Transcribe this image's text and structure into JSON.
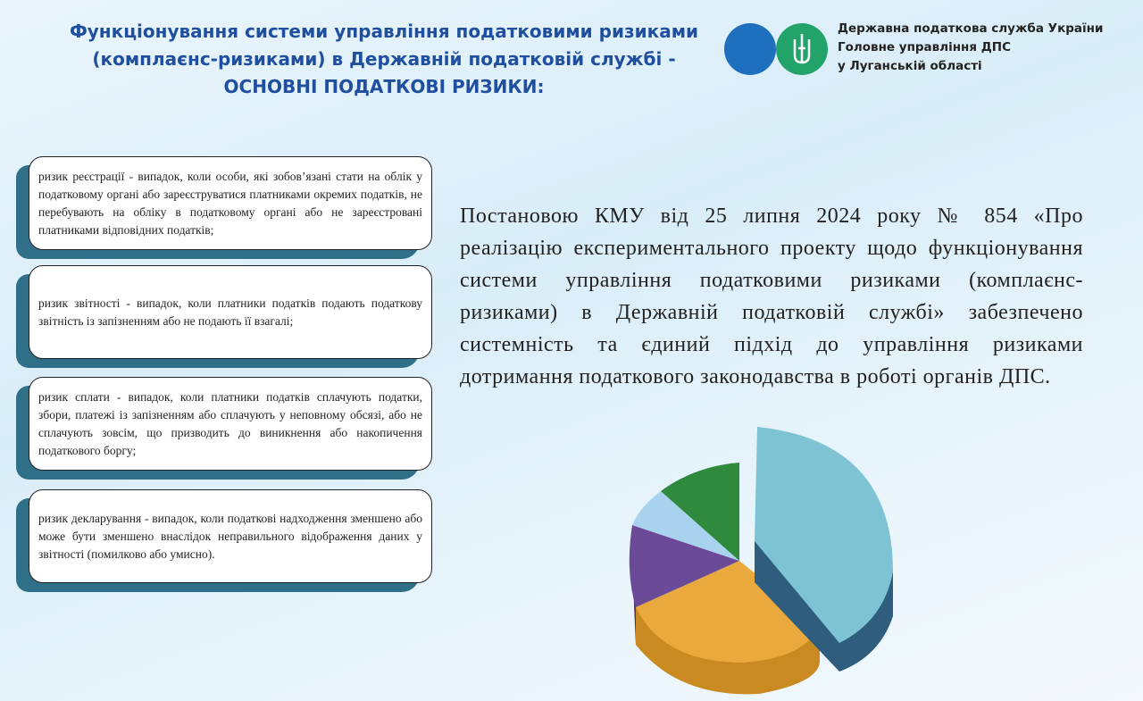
{
  "header": {
    "title_lines": [
      "Функціонування системи управління податковими ризиками",
      "(комплаєнс-ризиками) в Державній податковій службі -",
      "ОСНОВНІ ПОДАТКОВІ РИЗИКИ:"
    ]
  },
  "organization": {
    "lines": [
      "Державна податкова служба України",
      "Головне управління ДПС",
      "у Луганській області"
    ]
  },
  "risks": [
    "ризик реєстрації - випадок, коли особи, які зобов’язані стати на облік у податковому органі або зареєструватися платниками окремих податків, не перебувають на обліку в податковому органі або не зареєстровані платниками відповідних податків;",
    "ризик звітності - випадок, коли платники податків подають податкову звітність із запізненням або не подають її взагалі;",
    "ризик сплати - випадок, коли платники податків сплачують податки, збори, платежі із запізненням або сплачують у неповному обсязі, або не сплачують зовсім, що призводить до виникнення або накопичення податкового боргу;",
    "ризик декларування - випадок, коли податкові надходження зменшено або може бути зменшено внаслідок неправильного відображення даних у звітності (помилково або умисно)."
  ],
  "main_text": "Постановою КМУ від 25 липня 2024 року № 854 «Про реалізацію експериментального проекту щодо функціонування системи управління податковими ризиками (комплаєнс-ризиками) в Державній податковій службі» забезпечено системність та єдиний підхід до управління ризиками дотримання податкового законодавства в роботі органів ДПС."
}
